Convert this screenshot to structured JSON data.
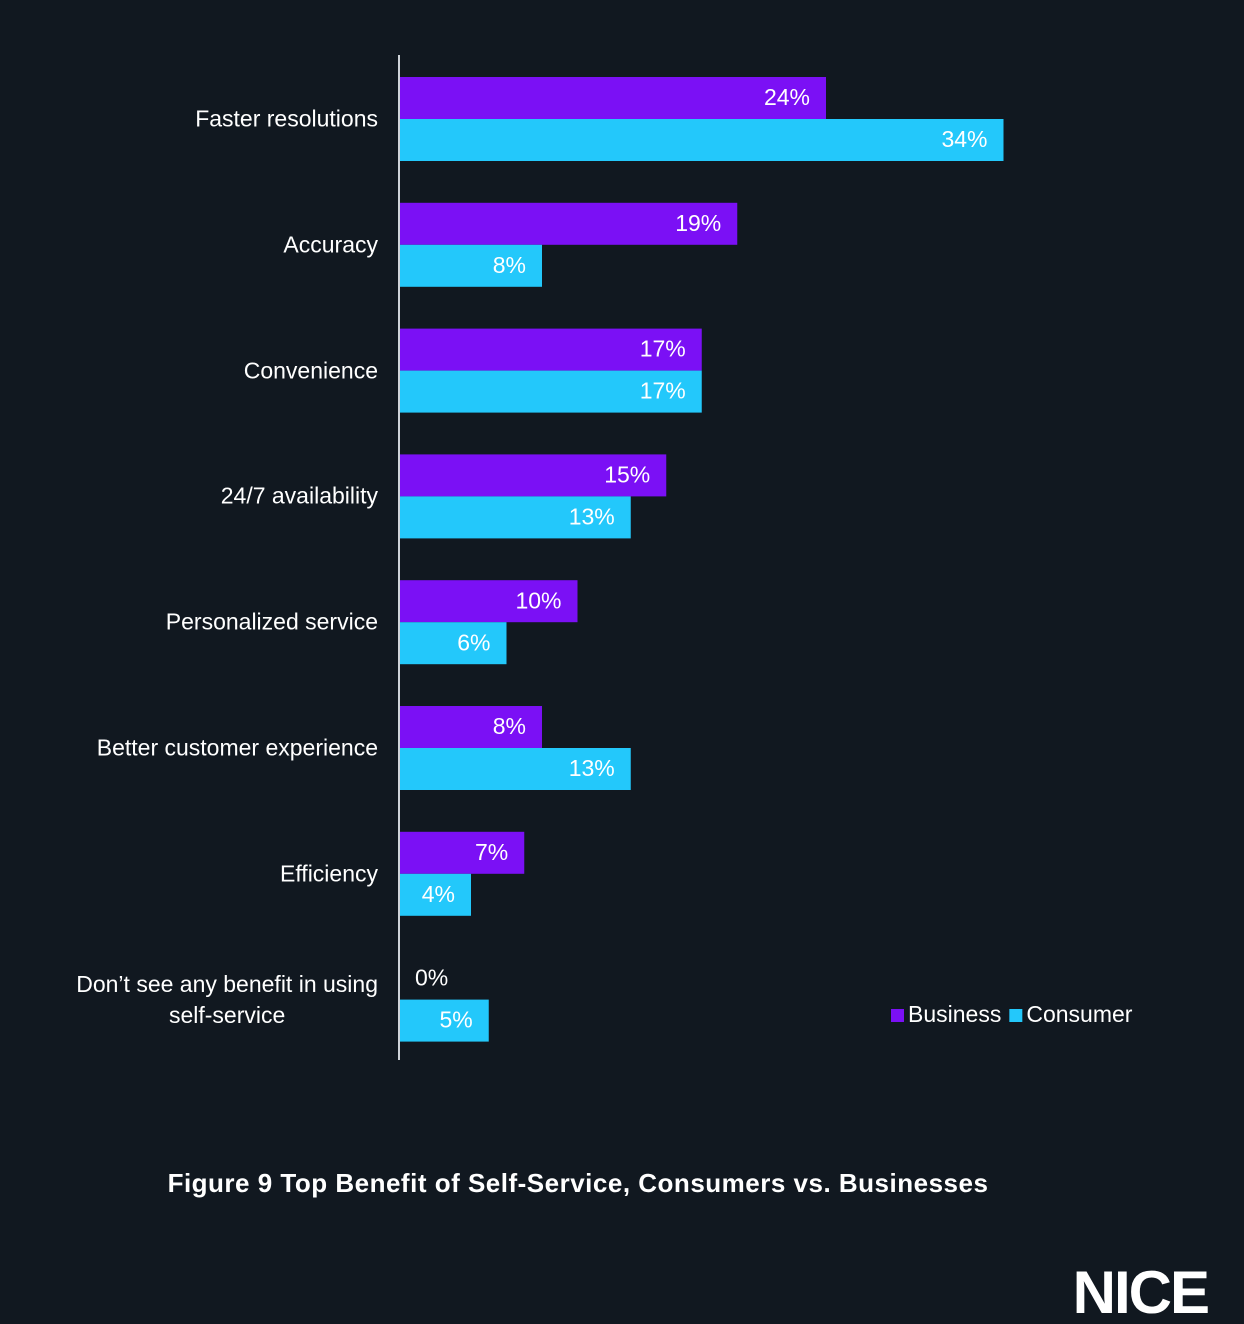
{
  "chart_data": {
    "type": "bar",
    "orientation": "horizontal",
    "title": "Figure 9 Top Benefit of Self-Service, Consumers vs. Businesses",
    "categories": [
      "Faster resolutions",
      "Accuracy",
      "Convenience",
      "24/7 availability",
      "Personalized service",
      "Better customer experience",
      "Efficiency",
      "Don’t see any benefit in using\nself-service"
    ],
    "series": [
      {
        "name": "Business",
        "color": "#7b10f5",
        "values": [
          24,
          19,
          17,
          15,
          10,
          8,
          7,
          0
        ],
        "value_labels": [
          "24%",
          "19%",
          "17%",
          "15%",
          "10%",
          "8%",
          "7%",
          "0%"
        ]
      },
      {
        "name": "Consumer",
        "color": "#23c8fb",
        "values": [
          34,
          8,
          17,
          13,
          6,
          13,
          4,
          5
        ],
        "value_labels": [
          "34%",
          "8%",
          "17%",
          "13%",
          "6%",
          "13%",
          "4%",
          "5%"
        ]
      }
    ],
    "legend": "bottom-right"
  },
  "logo": "NICE"
}
